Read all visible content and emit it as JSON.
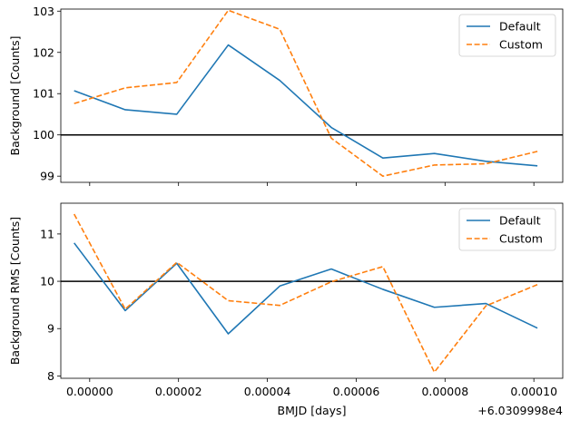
{
  "chart_data": [
    {
      "type": "line",
      "ylabel": "Background [Counts]",
      "xlim": [
        -6.5e-06,
        0.0001065
      ],
      "ylim": [
        98.85,
        103.05
      ],
      "yticks": [
        "99",
        "100",
        "101",
        "102",
        "103"
      ],
      "ytick_values": [
        99,
        100,
        101,
        102,
        103
      ],
      "xtick_values": [
        0,
        2e-05,
        4e-05,
        6e-05,
        8e-05,
        0.0001
      ],
      "show_xtick_labels": false,
      "hline": 100,
      "legend_position": "upper right",
      "x": [
        -3.5e-06,
        8e-06,
        1.96e-05,
        3.12e-05,
        4.28e-05,
        5.44e-05,
        6.6e-05,
        7.76e-05,
        8.92e-05,
        0.0001008
      ],
      "series": [
        {
          "name": "Default",
          "color": "#1f77b4",
          "style": "solid",
          "values": [
            101.07,
            100.61,
            100.5,
            102.18,
            101.32,
            100.18,
            99.44,
            99.55,
            99.36,
            99.25
          ]
        },
        {
          "name": "Custom",
          "color": "#ff7f0e",
          "style": "dashed",
          "values": [
            100.76,
            101.14,
            101.27,
            103.02,
            102.56,
            99.92,
            99.0,
            99.27,
            99.3,
            99.6
          ]
        }
      ]
    },
    {
      "type": "line",
      "ylabel": "Background RMS [Counts]",
      "xlabel": "BMJD [days]",
      "offset_label": "+6.0309998e4",
      "xlim": [
        -6.5e-06,
        0.0001065
      ],
      "ylim": [
        7.95,
        11.65
      ],
      "yticks": [
        "8",
        "9",
        "10",
        "11"
      ],
      "ytick_values": [
        8,
        9,
        10,
        11
      ],
      "xticks": [
        "0.00000",
        "0.00002",
        "0.00004",
        "0.00006",
        "0.00008",
        "0.00010"
      ],
      "xtick_values": [
        0,
        2e-05,
        4e-05,
        6e-05,
        8e-05,
        0.0001
      ],
      "show_xtick_labels": true,
      "hline": 10,
      "legend_position": "upper right",
      "x": [
        -3.5e-06,
        8e-06,
        1.96e-05,
        3.12e-05,
        4.28e-05,
        5.44e-05,
        6.6e-05,
        7.76e-05,
        8.92e-05,
        0.0001008
      ],
      "series": [
        {
          "name": "Default",
          "color": "#1f77b4",
          "style": "solid",
          "values": [
            10.81,
            9.38,
            10.38,
            8.89,
            9.9,
            10.26,
            9.83,
            9.45,
            9.53,
            9.01
          ]
        },
        {
          "name": "Custom",
          "color": "#ff7f0e",
          "style": "dashed",
          "values": [
            11.42,
            9.41,
            10.4,
            9.59,
            9.49,
            9.99,
            10.31,
            8.08,
            9.48,
            9.93
          ]
        }
      ]
    }
  ]
}
